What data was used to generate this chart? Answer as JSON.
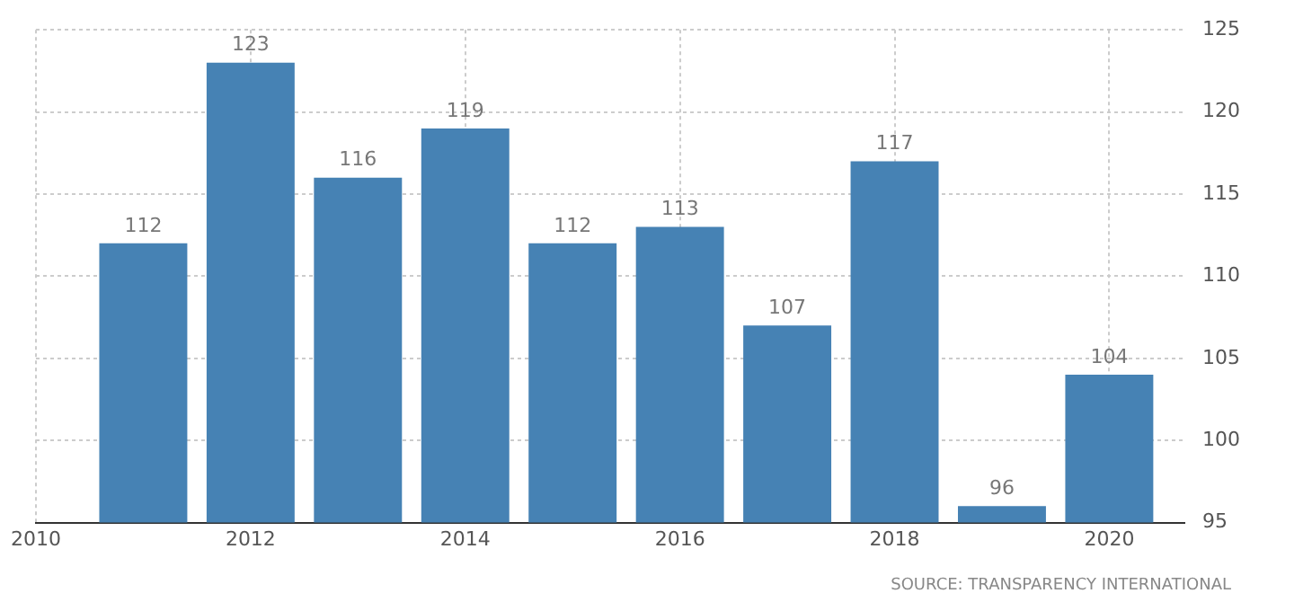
{
  "chart_data": {
    "type": "bar",
    "x": [
      2011,
      2012,
      2013,
      2014,
      2015,
      2016,
      2017,
      2018,
      2019,
      2020
    ],
    "values": [
      112,
      123,
      116,
      119,
      112,
      113,
      107,
      117,
      96,
      104
    ],
    "color": "#4682b4",
    "xlim": [
      2010,
      2020.7
    ],
    "xticks": [
      2010,
      2012,
      2014,
      2016,
      2018,
      2020
    ],
    "ylim": [
      95,
      125
    ],
    "yticks": [
      95,
      100,
      105,
      110,
      115,
      120,
      125
    ],
    "grid": true,
    "data_labels": true,
    "annotations": [
      "SOURCE: TRANSPARENCY INTERNATIONAL"
    ]
  }
}
